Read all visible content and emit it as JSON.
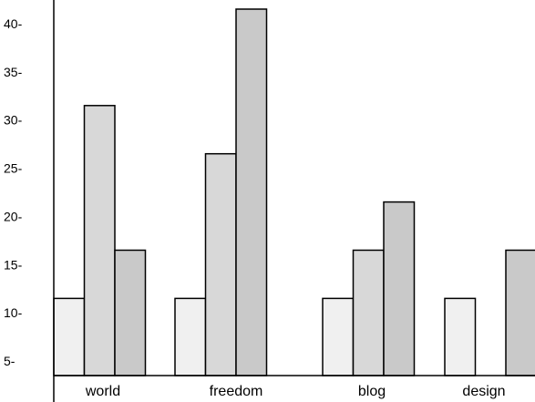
{
  "chart_data": {
    "type": "bar",
    "categories": [
      "world",
      "freedom",
      "blog",
      "design"
    ],
    "series": [
      {
        "values": [
          11.5,
          11.5,
          11.5,
          11.5
        ],
        "color": "#f0f0f0"
      },
      {
        "values": [
          31.5,
          26.5,
          16.5,
          3.5
        ],
        "color": "#d8d8d8"
      },
      {
        "values": [
          16.5,
          41.5,
          21.5,
          16.5
        ],
        "color": "#c9c9c9"
      }
    ],
    "yticks": [
      "5-",
      "10-",
      "15-",
      "20-",
      "25-",
      "30-",
      "35-",
      "40-"
    ],
    "ylim": [
      3.5,
      41.5
    ],
    "grid": false,
    "legend": "none"
  }
}
